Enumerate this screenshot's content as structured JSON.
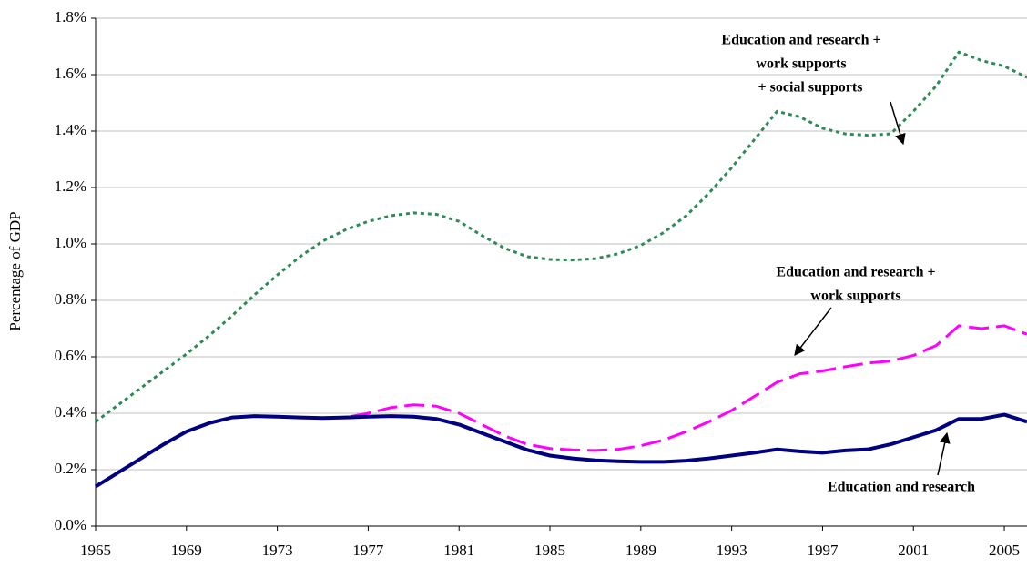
{
  "chart_data": {
    "type": "line",
    "y_label": "Percentage of GDP",
    "x": [
      1965,
      1966,
      1967,
      1968,
      1969,
      1970,
      1971,
      1972,
      1973,
      1974,
      1975,
      1976,
      1977,
      1978,
      1979,
      1980,
      1981,
      1982,
      1983,
      1984,
      1985,
      1986,
      1987,
      1988,
      1989,
      1990,
      1991,
      1992,
      1993,
      1994,
      1995,
      1996,
      1997,
      1998,
      1999,
      2000,
      2001,
      2002,
      2003,
      2004,
      2005,
      2006
    ],
    "xlim": [
      1965,
      2006
    ],
    "xticks": [
      1965,
      1969,
      1973,
      1977,
      1981,
      1985,
      1989,
      1993,
      1997,
      2001,
      2005
    ],
    "ylim": [
      0,
      1.8
    ],
    "yticks": [
      {
        "value": 0,
        "label": "0.0%"
      },
      {
        "value": 0.2,
        "label": "0.2%"
      },
      {
        "value": 0.4,
        "label": "0.4%"
      },
      {
        "value": 0.6,
        "label": "0.6%"
      },
      {
        "value": 0.8,
        "label": "0.8%"
      },
      {
        "value": 1.0,
        "label": "1.0%"
      },
      {
        "value": 1.2,
        "label": "1.2%"
      },
      {
        "value": 1.4,
        "label": "1.4%"
      },
      {
        "value": 1.6,
        "label": "1.6%"
      },
      {
        "value": 1.8,
        "label": "1.8%"
      }
    ],
    "grid": true,
    "series": [
      {
        "color": "#2e8b57",
        "line_style": "dotted",
        "values": [
          0.37,
          0.43,
          0.49,
          0.55,
          0.61,
          0.675,
          0.745,
          0.82,
          0.89,
          0.955,
          1.01,
          1.05,
          1.08,
          1.1,
          1.11,
          1.105,
          1.08,
          1.03,
          0.985,
          0.955,
          0.945,
          0.943,
          0.948,
          0.965,
          0.995,
          1.04,
          1.1,
          1.18,
          1.27,
          1.37,
          1.47,
          1.45,
          1.41,
          1.39,
          1.385,
          1.39,
          1.47,
          1.56,
          1.68,
          1.65,
          1.63,
          1.59
        ]
      },
      {
        "color": "#ff00ff",
        "line_style": "dashed",
        "values": [
          0.14,
          0.19,
          0.24,
          0.29,
          0.335,
          0.365,
          0.385,
          0.39,
          0.388,
          0.385,
          0.383,
          0.385,
          0.4,
          0.42,
          0.43,
          0.425,
          0.4,
          0.36,
          0.32,
          0.29,
          0.275,
          0.27,
          0.268,
          0.272,
          0.285,
          0.305,
          0.335,
          0.37,
          0.41,
          0.46,
          0.51,
          0.54,
          0.55,
          0.565,
          0.578,
          0.585,
          0.605,
          0.64,
          0.71,
          0.7,
          0.71,
          0.68
        ]
      },
      {
        "color": "#000080",
        "line_style": "solid",
        "values": [
          0.14,
          0.19,
          0.24,
          0.29,
          0.335,
          0.365,
          0.385,
          0.39,
          0.388,
          0.385,
          0.383,
          0.385,
          0.388,
          0.39,
          0.388,
          0.38,
          0.36,
          0.33,
          0.3,
          0.27,
          0.25,
          0.24,
          0.233,
          0.23,
          0.228,
          0.228,
          0.232,
          0.24,
          0.25,
          0.26,
          0.272,
          0.265,
          0.26,
          0.268,
          0.272,
          0.29,
          0.315,
          0.34,
          0.38,
          0.38,
          0.395,
          0.37
        ]
      }
    ],
    "annotations": [
      {
        "lines": [
          "Education and research +",
          "work supports",
          "+ social supports"
        ]
      },
      {
        "lines": [
          "Education and research +",
          "work supports"
        ]
      },
      {
        "lines": [
          "Education and research"
        ]
      }
    ]
  }
}
